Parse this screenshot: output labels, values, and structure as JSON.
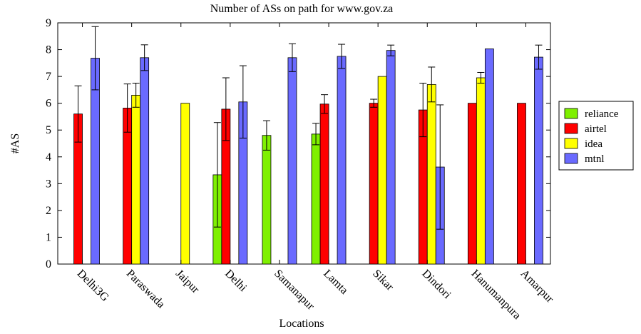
{
  "chart_data": {
    "type": "bar",
    "title": "Number of ASs on path for www.gov.za",
    "xlabel": "Locations",
    "ylabel": "#AS",
    "ylim": [
      0,
      9
    ],
    "yticks": [
      0,
      1,
      2,
      3,
      4,
      5,
      6,
      7,
      8,
      9
    ],
    "grid": false,
    "legend_position": "right",
    "categories": [
      "Delhi3G",
      "Paraswada",
      "Jaipur",
      "Delhi",
      "Samanapur",
      "Lamta",
      "Sikar",
      "Dindori",
      "Hanumanpura",
      "Amarpur"
    ],
    "series": [
      {
        "name": "reliance",
        "color": "#7ff000",
        "values": [
          null,
          null,
          null,
          3.33,
          4.8,
          4.85,
          null,
          null,
          null,
          null
        ],
        "errors": [
          null,
          null,
          null,
          1.95,
          0.55,
          0.4,
          null,
          null,
          null,
          null
        ]
      },
      {
        "name": "airtel",
        "color": "#ff0000",
        "values": [
          5.6,
          5.82,
          null,
          5.78,
          null,
          5.97,
          6.0,
          5.75,
          6.0,
          6.0
        ],
        "errors": [
          1.05,
          0.9,
          null,
          1.17,
          null,
          0.35,
          0.15,
          1.0,
          null,
          null
        ]
      },
      {
        "name": "idea",
        "color": "#ffff00",
        "values": [
          null,
          6.3,
          6.0,
          null,
          null,
          null,
          7.0,
          6.7,
          6.95,
          null
        ],
        "errors": [
          null,
          0.45,
          null,
          null,
          null,
          null,
          null,
          0.65,
          0.2,
          null
        ]
      },
      {
        "name": "mtnl",
        "color": "#6a6aff",
        "values": [
          7.68,
          7.7,
          null,
          6.05,
          7.7,
          7.75,
          7.97,
          3.62,
          8.03,
          7.72
        ],
        "errors": [
          1.18,
          0.48,
          null,
          1.35,
          0.52,
          0.45,
          0.2,
          2.32,
          null,
          0.45
        ]
      }
    ]
  }
}
